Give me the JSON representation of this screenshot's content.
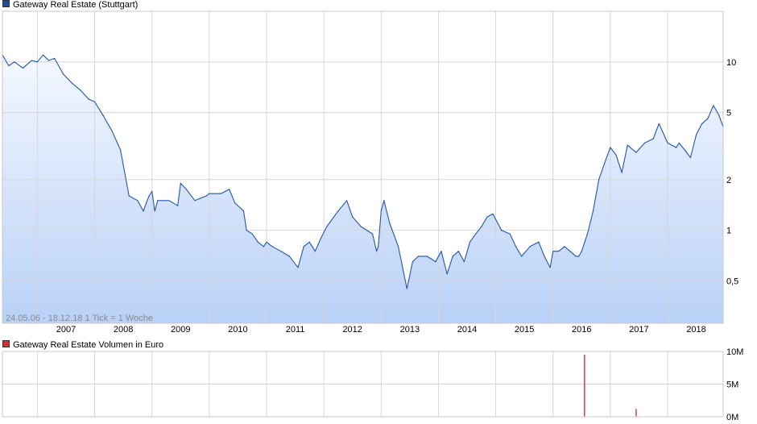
{
  "chart_data": [
    {
      "type": "area",
      "title": "Gateway Real Estate (Stuttgart)",
      "yscale": "log",
      "ylim": [
        0.28,
        20
      ],
      "xlim": [
        2006.39,
        2018.97
      ],
      "x_ticks": [
        "2007",
        "2008",
        "2009",
        "2010",
        "2011",
        "2012",
        "2013",
        "2014",
        "2015",
        "2016",
        "2017",
        "2018"
      ],
      "y_ticks": [
        {
          "value": 10,
          "label": "10"
        },
        {
          "value": 5,
          "label": "5"
        },
        {
          "value": 2,
          "label": "2"
        },
        {
          "value": 1,
          "label": "1"
        },
        {
          "value": 0.5,
          "label": "0,5"
        }
      ],
      "annotation": "24.05.06 - 18.12.18   1 Tick = 1 Woche",
      "grid": true,
      "legend_position": "top-left",
      "line_color": "#2255aa",
      "fill_top": "#f4f8ff",
      "fill_bottom": "#b9d1f7",
      "series": [
        {
          "name": "Gateway Real Estate (Stuttgart)",
          "x": [
            2006.39,
            2006.5,
            2006.6,
            2006.75,
            2006.9,
            2007.0,
            2007.1,
            2007.2,
            2007.3,
            2007.45,
            2007.6,
            2007.75,
            2007.9,
            2008.0,
            2008.15,
            2008.3,
            2008.45,
            2008.6,
            2008.75,
            2008.85,
            2008.9,
            2008.95,
            2009.0,
            2009.05,
            2009.1,
            2009.3,
            2009.45,
            2009.5,
            2009.6,
            2009.75,
            2009.95,
            2010.0,
            2010.2,
            2010.35,
            2010.45,
            2010.6,
            2010.65,
            2010.75,
            2010.85,
            2010.95,
            2011.0,
            2011.1,
            2011.25,
            2011.4,
            2011.55,
            2011.65,
            2011.75,
            2011.85,
            2011.95,
            2012.05,
            2012.25,
            2012.4,
            2012.5,
            2012.65,
            2012.75,
            2012.85,
            2012.92,
            2012.95,
            2013.0,
            2013.05,
            2013.15,
            2013.3,
            2013.45,
            2013.55,
            2013.65,
            2013.8,
            2013.95,
            2014.05,
            2014.15,
            2014.25,
            2014.35,
            2014.45,
            2014.55,
            2014.65,
            2014.75,
            2014.85,
            2014.95,
            2015.1,
            2015.25,
            2015.35,
            2015.45,
            2015.6,
            2015.75,
            2015.85,
            2015.95,
            2016.0,
            2016.1,
            2016.2,
            2016.3,
            2016.4,
            2016.45,
            2016.5,
            2016.6,
            2016.7,
            2016.8,
            2016.9,
            2017.0,
            2017.1,
            2017.2,
            2017.3,
            2017.45,
            2017.6,
            2017.75,
            2017.85,
            2018.0,
            2018.15,
            2018.2,
            2018.3,
            2018.4,
            2018.5,
            2018.6,
            2018.7,
            2018.8,
            2018.9,
            2018.97
          ],
          "values": [
            11.0,
            9.5,
            10.0,
            9.2,
            10.2,
            10.0,
            11.0,
            10.2,
            10.5,
            8.5,
            7.5,
            6.8,
            6.0,
            5.8,
            4.8,
            3.9,
            3.0,
            1.6,
            1.5,
            1.3,
            1.45,
            1.6,
            1.7,
            1.3,
            1.5,
            1.5,
            1.4,
            1.9,
            1.75,
            1.5,
            1.6,
            1.65,
            1.65,
            1.75,
            1.45,
            1.3,
            1.0,
            0.95,
            0.85,
            0.8,
            0.85,
            0.8,
            0.75,
            0.7,
            0.6,
            0.8,
            0.85,
            0.75,
            0.9,
            1.05,
            1.3,
            1.5,
            1.2,
            1.05,
            1.0,
            0.95,
            0.75,
            0.8,
            1.3,
            1.5,
            1.1,
            0.8,
            0.45,
            0.65,
            0.7,
            0.7,
            0.65,
            0.75,
            0.55,
            0.7,
            0.75,
            0.65,
            0.85,
            0.95,
            1.05,
            1.2,
            1.25,
            1.0,
            0.95,
            0.8,
            0.7,
            0.8,
            0.85,
            0.7,
            0.6,
            0.75,
            0.75,
            0.8,
            0.75,
            0.7,
            0.7,
            0.75,
            0.95,
            1.3,
            2.0,
            2.5,
            3.1,
            2.8,
            2.2,
            3.2,
            2.9,
            3.3,
            3.5,
            4.3,
            3.3,
            3.1,
            3.3,
            3.0,
            2.7,
            3.7,
            4.3,
            4.6,
            5.5,
            4.8,
            4.1
          ]
        }
      ]
    },
    {
      "type": "bar",
      "title": "Gateway Real Estate Volumen in Euro",
      "ylim": [
        0,
        10000000
      ],
      "xlim": [
        2006.39,
        2018.97
      ],
      "y_ticks": [
        {
          "value": 10000000,
          "label": "10M"
        },
        {
          "value": 5000000,
          "label": "5M"
        },
        {
          "value": 0,
          "label": "0M"
        }
      ],
      "grid": true,
      "legend_position": "top-left",
      "bar_color": "#cc3333",
      "series": [
        {
          "name": "Gateway Real Estate Volumen in Euro",
          "x": [
            2016.55,
            2017.45
          ],
          "values": [
            9500000,
            1200000
          ]
        }
      ]
    }
  ]
}
